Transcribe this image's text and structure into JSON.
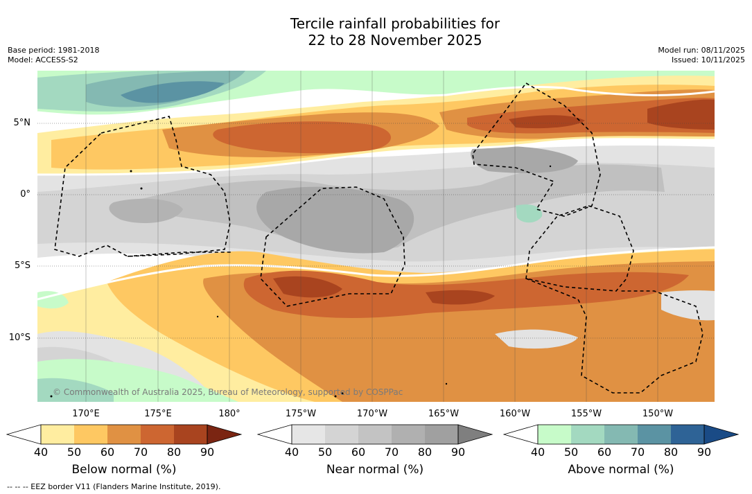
{
  "title": {
    "line1": "Tercile rainfall probabilities for",
    "line2": "22 to 28 November 2025"
  },
  "meta_left": {
    "base_period": "Base period: 1981-2018",
    "model": "Model: ACCESS-S2"
  },
  "meta_right": {
    "model_run": "Model run: 08/11/2025",
    "issued": "Issued: 10/11/2025"
  },
  "map": {
    "lat_labels": [
      "5°N",
      "0°",
      "5°S",
      "10°S"
    ],
    "lon_labels": [
      "170°E",
      "175°E",
      "180°",
      "175°W",
      "170°W",
      "165°W",
      "160°W",
      "155°W",
      "150°W"
    ],
    "copyright": "© Commonwealth of Australia 2025, Bureau of Meteorology, supported by COSPPac",
    "colors": {
      "background": "#ffffff",
      "below": [
        "#ffffff",
        "#ffeda0",
        "#fec862",
        "#e09143",
        "#cd6631",
        "#a9441f",
        "#7b2512"
      ],
      "near": [
        "#ffffff",
        "#e6e6e6",
        "#d4d4d4",
        "#c3c3c3",
        "#b0b0b0",
        "#a0a0a0",
        "#7f7f7f"
      ],
      "above": [
        "#ffffff",
        "#c7fbc9",
        "#a3d9c0",
        "#84b9b2",
        "#5b93a3",
        "#2e6396",
        "#1a4b86"
      ]
    }
  },
  "colorbars": [
    {
      "id": "below",
      "title": "Below normal (%)",
      "ticks": [
        "40",
        "50",
        "60",
        "70",
        "80",
        "90"
      ]
    },
    {
      "id": "near",
      "title": "Near normal (%)",
      "ticks": [
        "40",
        "50",
        "60",
        "70",
        "80",
        "90"
      ]
    },
    {
      "id": "above",
      "title": "Above normal (%)",
      "ticks": [
        "40",
        "50",
        "60",
        "70",
        "80",
        "90"
      ]
    }
  ],
  "footer": "-- -- -- EEZ border V11 (Flanders Marine Institute, 2019)."
}
